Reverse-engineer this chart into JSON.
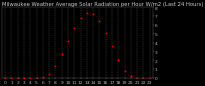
{
  "title": "Milwaukee Weather Average Solar Radiation per Hour W/m2 (Last 24 Hours)",
  "x_values": [
    0,
    1,
    2,
    3,
    4,
    5,
    6,
    7,
    8,
    9,
    10,
    11,
    12,
    13,
    14,
    15,
    16,
    17,
    18,
    19,
    20,
    21,
    22,
    23
  ],
  "y_values": [
    0,
    0,
    0,
    0,
    0,
    0,
    5,
    40,
    130,
    270,
    420,
    560,
    680,
    740,
    720,
    640,
    510,
    360,
    200,
    80,
    20,
    2,
    0,
    0
  ],
  "line_color": "#ff0000",
  "bg_color": "#000000",
  "plot_bg_color": "#000000",
  "grid_color": "#666666",
  "tick_color": "#bbbbbb",
  "title_color": "#cccccc",
  "ylim": [
    0,
    800
  ],
  "xlim": [
    -0.5,
    23.5
  ],
  "ytick_values": [
    0,
    100,
    200,
    300,
    400,
    500,
    600,
    700,
    800
  ],
  "ytick_labels": [
    "0",
    "1",
    "2",
    "3",
    "4",
    "5",
    "6",
    "7",
    "8"
  ],
  "xticks": [
    0,
    1,
    2,
    3,
    4,
    5,
    6,
    7,
    8,
    9,
    10,
    11,
    12,
    13,
    14,
    15,
    16,
    17,
    18,
    19,
    20,
    21,
    22,
    23
  ],
  "title_fontsize": 3.8,
  "tick_fontsize": 3.2,
  "marker_size": 1.2,
  "line_width": 0.5
}
